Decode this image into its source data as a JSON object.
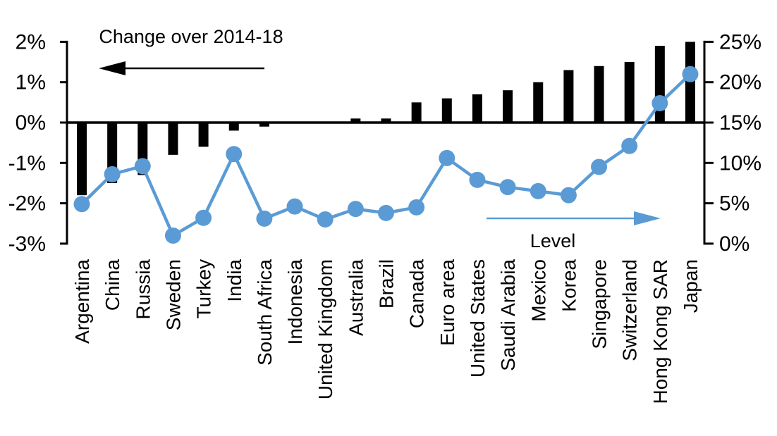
{
  "chart_data": {
    "type": "combo-bar-line-dual-axis",
    "categories": [
      "Argentina",
      "China",
      "Russia",
      "Sweden",
      "Turkey",
      "India",
      "South Africa",
      "Indonesia",
      "United Kingdom",
      "Australia",
      "Brazil",
      "Canada",
      "Euro area",
      "United States",
      "Saudi Arabia",
      "Mexico",
      "Korea",
      "Singapore",
      "Switzerland",
      "Hong Kong SAR",
      "Japan"
    ],
    "series": [
      {
        "name": "Change over 2014-18",
        "type": "bar",
        "axis": "left",
        "color": "#000000",
        "values": [
          -1.8,
          -1.5,
          -1.3,
          -0.8,
          -0.6,
          -0.2,
          -0.1,
          0,
          0,
          0.1,
          0.1,
          0.5,
          0.6,
          0.7,
          0.8,
          1.0,
          1.3,
          1.4,
          1.5,
          1.9,
          2.0
        ]
      },
      {
        "name": "Level",
        "type": "line",
        "axis": "right",
        "color": "#5B9BD5",
        "values": [
          4.9,
          8.6,
          9.6,
          1.0,
          3.2,
          11.1,
          3.1,
          4.6,
          3.0,
          4.3,
          3.8,
          4.5,
          10.6,
          7.9,
          7.0,
          6.5,
          6.0,
          9.5,
          12.1,
          17.4,
          21.0
        ]
      }
    ],
    "left_axis": {
      "unit": "%",
      "min": -3,
      "max": 2,
      "tick_values": [
        2,
        1,
        0,
        -1,
        -2,
        -3
      ],
      "tick_labels": [
        "2%",
        "1%",
        "0%",
        "-1%",
        "-2%",
        "-3%"
      ]
    },
    "right_axis": {
      "unit": "%",
      "min": 0,
      "max": 25,
      "tick_values": [
        25,
        20,
        15,
        10,
        5,
        0
      ],
      "tick_labels": [
        "25%",
        "20%",
        "15%",
        "10%",
        "5%",
        "0%"
      ]
    },
    "annotations": [
      {
        "text": "Change over 2014-18",
        "arrow_direction": "left",
        "color": "#000000"
      },
      {
        "text": "Level",
        "arrow_direction": "right",
        "color": "#5B9BD5"
      }
    ],
    "grid": false,
    "background": "#FFFFFF"
  },
  "colors": {
    "bar": "#000000",
    "line": "#5B9BD5",
    "axis": "#000000",
    "text": "#000000",
    "background": "#FFFFFF"
  }
}
